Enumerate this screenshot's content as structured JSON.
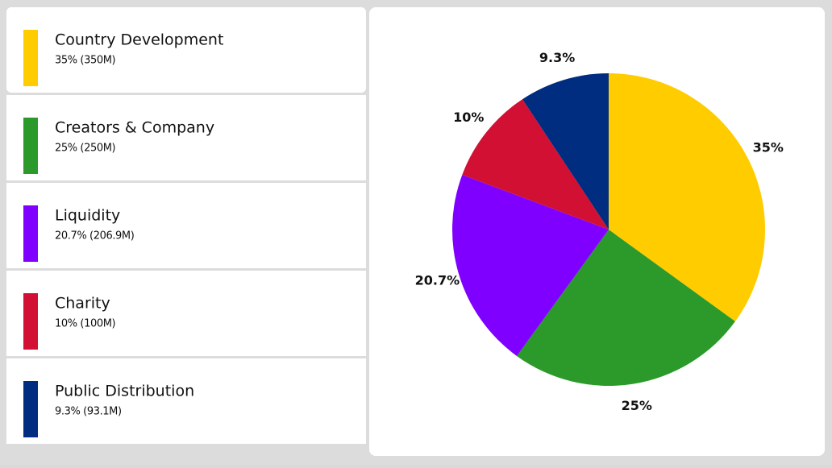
{
  "chart_data": {
    "type": "pie",
    "categories": [
      "Country Development",
      "Creators & Company",
      "Liquidity",
      "Charity",
      "Public Distribution"
    ],
    "values": [
      35,
      25,
      20.7,
      10,
      9.3
    ],
    "value_labels": [
      "35%",
      "25%",
      "20.7%",
      "10%",
      "9.3%"
    ],
    "legend_labels": [
      "35% (350M)",
      "25% (250M)",
      "20.7% (206.9M)",
      "10% (100M)",
      "9.3% (93.1M)"
    ],
    "colors": [
      "#ffcc00",
      "#2b9a2b",
      "#8000ff",
      "#d21034",
      "#002d7f"
    ]
  }
}
